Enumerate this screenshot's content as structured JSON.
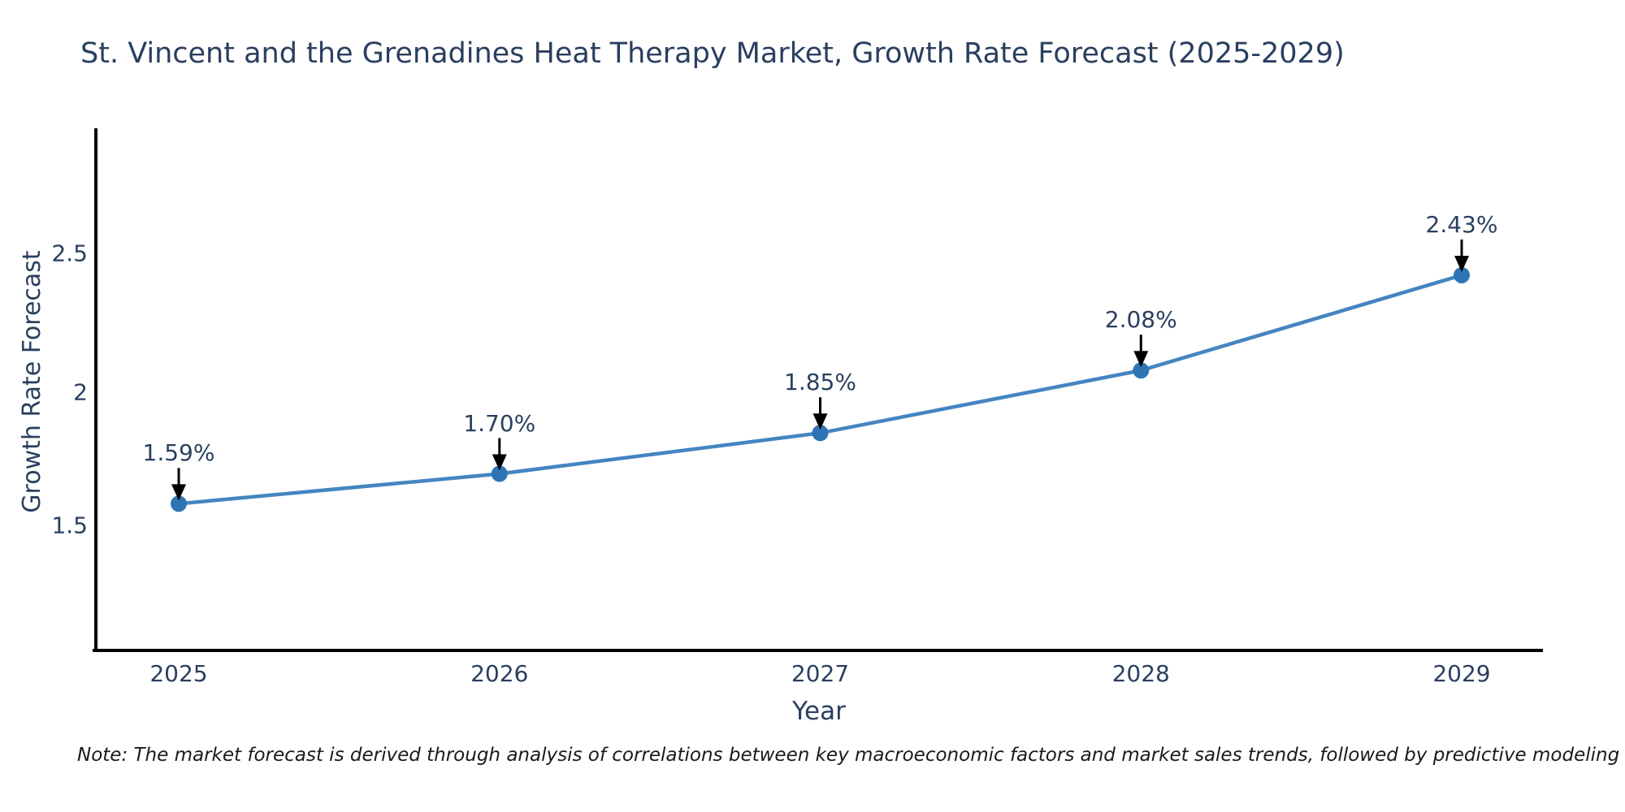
{
  "chart_data": {
    "type": "line",
    "title": "St. Vincent and the Grenadines Heat Therapy Market, Growth Rate Forecast (2025-2029)",
    "xlabel": "Year",
    "ylabel": "Growth Rate Forecast",
    "categories": [
      "2025",
      "2026",
      "2027",
      "2028",
      "2029"
    ],
    "series": [
      {
        "name": "Growth Rate Forecast",
        "values": [
          1.59,
          1.7,
          1.85,
          2.08,
          2.43
        ]
      }
    ],
    "point_labels": [
      "1.59%",
      "1.70%",
      "1.85%",
      "2.08%",
      "2.43%"
    ],
    "ytick_labels": [
      "2.5",
      "2",
      "1.5"
    ],
    "ylim": [
      1.05,
      2.96
    ],
    "grid": false,
    "legend_position": "none",
    "colors": {
      "line": "#4485c1",
      "marker": "#2e75b6",
      "arrow": "#000000",
      "text": "#2a3f5f"
    }
  },
  "note": "Note: The market forecast is derived through analysis of correlations between key macroeconomic factors and market sales trends, followed by predictive modeling to project future sales"
}
